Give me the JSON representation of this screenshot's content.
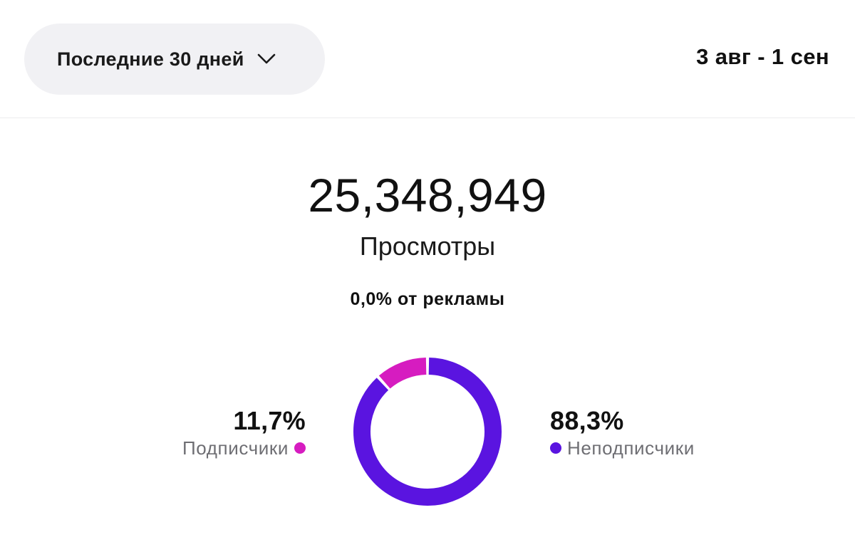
{
  "filter": {
    "range_label": "Последние 30 дней",
    "date_range": "3 авг - 1 сен"
  },
  "summary": {
    "views_count": "25,348,949",
    "views_label": "Просмотры",
    "ads_share": "0,0% от рекламы"
  },
  "breakdown": {
    "subscribers": {
      "percent_label": "11,7%",
      "name": "Подписчики",
      "color": "#d61cc0"
    },
    "non_subscribers": {
      "percent_label": "88,3%",
      "name": "Неподписчики",
      "color": "#5a14e0"
    }
  },
  "chart_data": {
    "type": "pie",
    "categories": [
      "Подписчики",
      "Неподписчики"
    ],
    "values": [
      11.7,
      88.3
    ],
    "colors": [
      "#d61cc0",
      "#5a14e0"
    ],
    "title": "",
    "donut": true
  }
}
